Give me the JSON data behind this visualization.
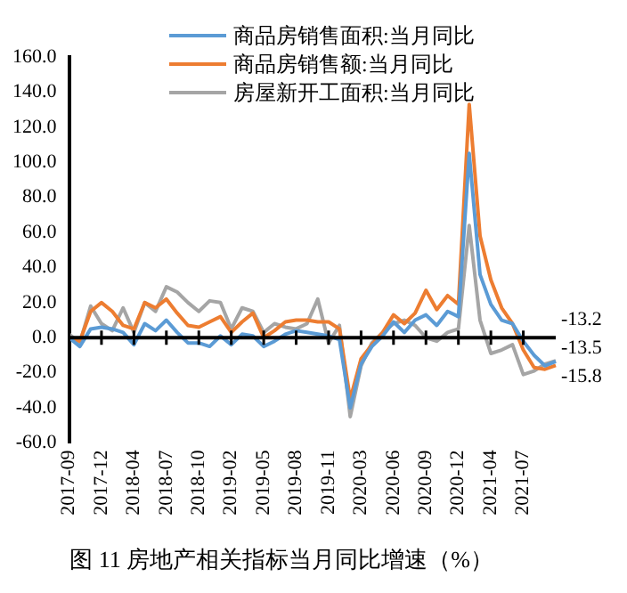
{
  "chart_data": {
    "type": "line",
    "title": "图 11 房地产相关指标当月同比增速（%）",
    "categories": [
      "2017-09",
      null,
      null,
      "2017-12",
      null,
      null,
      "2018-04",
      null,
      null,
      "2018-07",
      null,
      null,
      "2018-10",
      null,
      null,
      "2019-02",
      null,
      null,
      "2019-05",
      null,
      null,
      "2019-08",
      null,
      null,
      "2019-11",
      null,
      null,
      "2020-03",
      null,
      null,
      "2020-06",
      null,
      null,
      "2020-09",
      null,
      null,
      "2020-12",
      null,
      null,
      "2021-04",
      null,
      null,
      "2021-07",
      null,
      null,
      null
    ],
    "series": [
      {
        "name": "商品房销售面积:当月同比",
        "color": "#5b9bd5",
        "values": [
          0,
          -5,
          5,
          6,
          5,
          3,
          -4,
          8,
          4,
          10,
          3,
          -3,
          -3,
          -5,
          1,
          -4,
          2,
          1,
          -5,
          -2,
          2,
          4,
          3,
          2,
          1,
          -1,
          -40,
          -15,
          -5,
          1,
          9,
          3,
          10,
          13,
          7,
          15,
          12,
          105,
          36,
          19,
          10,
          8,
          -2,
          -10,
          -16,
          -13.5
        ],
        "value_labels": [
          null,
          null,
          null,
          null,
          null,
          null,
          null,
          null,
          null,
          null,
          null,
          null,
          null,
          null,
          null,
          null,
          null,
          null,
          null,
          null,
          null,
          null,
          null,
          null,
          null,
          null,
          null,
          null,
          null,
          null,
          null,
          null,
          null,
          null,
          null,
          null,
          null,
          null,
          null,
          null,
          null,
          null,
          null,
          null,
          null,
          "-13.5"
        ]
      },
      {
        "name": "商品房销售额:当月同比",
        "color": "#ed7d31",
        "values": [
          0,
          -2,
          15,
          20,
          15,
          7,
          5,
          20,
          17,
          22,
          14,
          7,
          6,
          9,
          12,
          3,
          9,
          14,
          0,
          4,
          9,
          10,
          10,
          9,
          9,
          5,
          -35,
          -12,
          -4,
          3,
          13,
          8,
          14,
          27,
          16,
          24,
          19,
          133,
          58,
          33,
          17,
          8,
          -7,
          -17,
          -18,
          -15.8
        ],
        "value_labels": [
          null,
          null,
          null,
          null,
          null,
          null,
          null,
          null,
          null,
          null,
          null,
          null,
          null,
          null,
          null,
          null,
          null,
          null,
          null,
          null,
          null,
          null,
          null,
          null,
          null,
          null,
          null,
          null,
          null,
          null,
          null,
          null,
          null,
          null,
          null,
          null,
          null,
          null,
          null,
          null,
          null,
          null,
          null,
          null,
          null,
          "-15.8"
        ]
      },
      {
        "name": "房屋新开工面积:当月同比",
        "color": "#a5a5a5",
        "values": [
          2,
          -3,
          18,
          8,
          4,
          17,
          3,
          20,
          15,
          29,
          26,
          20,
          15,
          21,
          20,
          5,
          17,
          15,
          3,
          8,
          6,
          5,
          8,
          22,
          -3,
          7,
          -45,
          -16,
          -3,
          3,
          8,
          10,
          7,
          0,
          -2,
          3,
          5,
          64,
          10,
          -9,
          -7,
          -4,
          -21,
          -19,
          -15,
          -13.2
        ],
        "value_labels": [
          null,
          null,
          null,
          null,
          null,
          null,
          null,
          null,
          null,
          null,
          null,
          null,
          null,
          null,
          null,
          null,
          null,
          null,
          null,
          null,
          null,
          null,
          null,
          null,
          null,
          null,
          null,
          null,
          null,
          null,
          null,
          null,
          null,
          null,
          null,
          null,
          null,
          null,
          null,
          null,
          null,
          null,
          null,
          null,
          null,
          "-13.2"
        ]
      }
    ],
    "ylim": [
      -60,
      160
    ],
    "yticks": [
      {
        "value": -60,
        "label": "-60.0"
      },
      {
        "value": -40,
        "label": "-40.0"
      },
      {
        "value": -20,
        "label": "-20.0"
      },
      {
        "value": 0,
        "label": "0.0"
      },
      {
        "value": 20,
        "label": "20.0"
      },
      {
        "value": 40,
        "label": "40.0"
      },
      {
        "value": 60,
        "label": "60.0"
      },
      {
        "value": 80,
        "label": "80.0"
      },
      {
        "value": 100,
        "label": "100.0"
      },
      {
        "value": 120,
        "label": "120.0"
      },
      {
        "value": 140,
        "label": "140.0"
      },
      {
        "value": 160,
        "label": "160.0"
      }
    ],
    "ref_lines": [
      {
        "axis": "y",
        "value": 0,
        "color": "#000000",
        "line_style": "solid"
      }
    ],
    "grid": false,
    "legend": "top",
    "marker": "none",
    "line_style": "solid"
  }
}
